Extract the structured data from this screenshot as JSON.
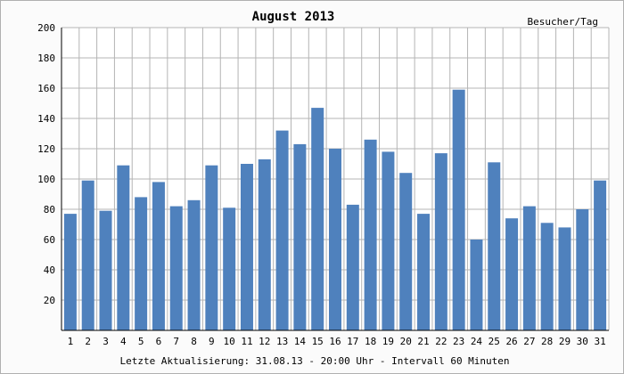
{
  "chart_data": {
    "type": "bar",
    "title": "August 2013",
    "unit_label": "Besucher/Tag",
    "footer": "Letzte Aktualisierung: 31.08.13 - 20:00 Uhr - Intervall 60 Minuten",
    "categories": [
      "1",
      "2",
      "3",
      "4",
      "5",
      "6",
      "7",
      "8",
      "9",
      "10",
      "11",
      "12",
      "13",
      "14",
      "15",
      "16",
      "17",
      "18",
      "19",
      "20",
      "21",
      "22",
      "23",
      "24",
      "25",
      "26",
      "27",
      "28",
      "29",
      "30",
      "31"
    ],
    "values": [
      77,
      99,
      79,
      109,
      88,
      98,
      82,
      86,
      109,
      81,
      110,
      113,
      132,
      123,
      147,
      120,
      83,
      126,
      118,
      104,
      77,
      117,
      159,
      60,
      111,
      74,
      82,
      71,
      68,
      80,
      99
    ],
    "ylim": [
      0,
      200
    ],
    "yticks": [
      20,
      40,
      60,
      80,
      100,
      120,
      140,
      160,
      180,
      200
    ],
    "grid": true,
    "colors": {
      "bar": "#4f81bd",
      "grid": "#b4b4b4",
      "axis": "#000000",
      "plot_background": "#ffffff"
    }
  }
}
